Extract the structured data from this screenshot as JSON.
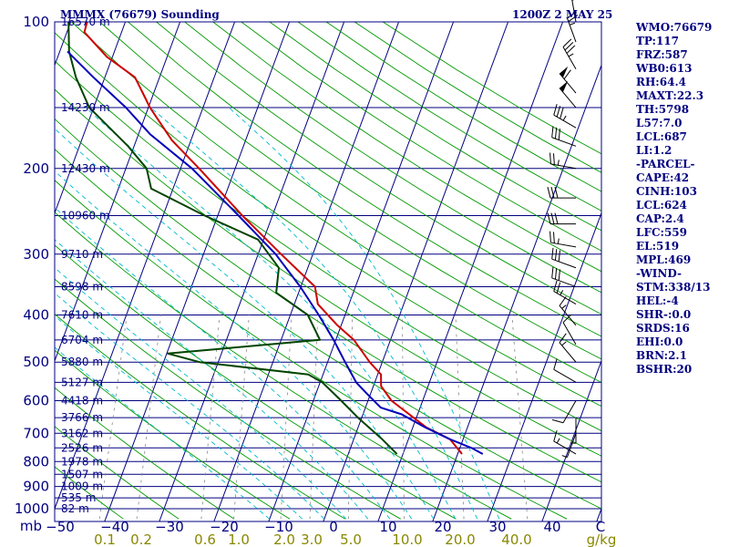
{
  "header": {
    "station_title": "MMMX (76679) Sounding",
    "time_label": "1200Z  2 MAY 25"
  },
  "indices": [
    "WMO:76679",
    "TP:117",
    "FRZ:587",
    "WB0:613",
    "RH:64.4",
    "MAXT:22.3",
    "TH:5798",
    "L57:7.0",
    "LCL:687",
    "LI:1.2",
    "-PARCEL-",
    "CAPE:42",
    "CINH:103",
    "LCL:624",
    "CAP:2.4",
    "LFC:559",
    "EL:519",
    "MPL:469",
    "-WIND-",
    "STM:338/13",
    "HEL:-4",
    "SHR-:0.0",
    "SRDS:16",
    "EHI:0.0",
    "BRN:2.1",
    "BSHR:20"
  ],
  "colors": {
    "frame": "#000080",
    "isobar": "#000080",
    "isotherm": "#000080",
    "dry_adiabat": "#009900",
    "moist_adiabat": "#00bbcc",
    "mixing_ratio": "#888888",
    "temperature": "#cc0000",
    "dewpoint": "#004400",
    "parcel": "#0000bb",
    "pressure_label": "#000080",
    "height_label": "#000080",
    "temp_label": "#000080",
    "mixing_label": "#888800",
    "barb": "#000000"
  },
  "chart_data": {
    "type": "skew-t log-p",
    "pressure_axis": {
      "range_hPa": [
        1000,
        100
      ],
      "scale": "log"
    },
    "temperature_axis": {
      "range_C": [
        -50,
        50
      ],
      "skewed": true
    },
    "pressure_labels": [
      "100",
      "200",
      "300",
      "400",
      "500",
      "600",
      "700",
      "800",
      "900",
      "1000",
      "mb"
    ],
    "temperature_ticks": [
      "−50",
      "−40",
      "−30",
      "−20",
      "−10",
      "0",
      "10",
      "20",
      "30",
      "40",
      "C"
    ],
    "mixing_ratio_labels": [
      "0.1",
      "0.2",
      "0.6",
      "1.0",
      "2.0",
      "3.0",
      "5.0",
      "10.0",
      "20.0",
      "40.0",
      "g/kg"
    ],
    "height_levels": [
      {
        "p": 100,
        "label": "16570 m"
      },
      {
        "p": 150,
        "label": "14230 m"
      },
      {
        "p": 200,
        "label": "12430 m"
      },
      {
        "p": 250,
        "label": "10960 m"
      },
      {
        "p": 300,
        "label": "9710 m"
      },
      {
        "p": 350,
        "label": "8598 m"
      },
      {
        "p": 400,
        "label": "7610 m"
      },
      {
        "p": 450,
        "label": "6704 m"
      },
      {
        "p": 500,
        "label": "5880 m"
      },
      {
        "p": 550,
        "label": "5127 m"
      },
      {
        "p": 600,
        "label": "4418 m"
      },
      {
        "p": 650,
        "label": "3766 m"
      },
      {
        "p": 700,
        "label": "3162 m"
      },
      {
        "p": 750,
        "label": "2526 m"
      },
      {
        "p": 800,
        "label": "1978 m"
      },
      {
        "p": 850,
        "label": "1507 m"
      },
      {
        "p": 900,
        "label": "1009 m"
      },
      {
        "p": 950,
        "label": "535 m"
      },
      {
        "p": 1000,
        "label": "82 m"
      }
    ],
    "series": [
      {
        "name": "temperature",
        "points": [
          {
            "p": 772,
            "t": 20.8
          },
          {
            "p": 720,
            "t": 17.6
          },
          {
            "p": 680,
            "t": 12.4
          },
          {
            "p": 600,
            "t": 4.3
          },
          {
            "p": 560,
            "t": 1.4
          },
          {
            "p": 530,
            "t": 0.6
          },
          {
            "p": 500,
            "t": -2.3
          },
          {
            "p": 450,
            "t": -6.7
          },
          {
            "p": 420,
            "t": -10.7
          },
          {
            "p": 380,
            "t": -15.7
          },
          {
            "p": 350,
            "t": -17.4
          },
          {
            "p": 300,
            "t": -25.8
          },
          {
            "p": 250,
            "t": -35.5
          },
          {
            "p": 200,
            "t": -46.6
          },
          {
            "p": 175,
            "t": -53.5
          },
          {
            "p": 150,
            "t": -59.7
          },
          {
            "p": 140,
            "t": -62.0
          },
          {
            "p": 130,
            "t": -64.5
          },
          {
            "p": 118,
            "t": -71.0
          },
          {
            "p": 105,
            "t": -76.8
          },
          {
            "p": 100,
            "t": -77.0
          }
        ]
      },
      {
        "name": "dewpoint",
        "points": [
          {
            "p": 772,
            "t": 8.9
          },
          {
            "p": 720,
            "t": 5.2
          },
          {
            "p": 650,
            "t": -0.7
          },
          {
            "p": 600,
            "t": -4.9
          },
          {
            "p": 550,
            "t": -9.6
          },
          {
            "p": 530,
            "t": -12.7
          },
          {
            "p": 500,
            "t": -33.4
          },
          {
            "p": 480,
            "t": -39.8
          },
          {
            "p": 450,
            "t": -12.9
          },
          {
            "p": 400,
            "t": -16.8
          },
          {
            "p": 360,
            "t": -24.1
          },
          {
            "p": 320,
            "t": -25.3
          },
          {
            "p": 280,
            "t": -31.0
          },
          {
            "p": 250,
            "t": -42.4
          },
          {
            "p": 220,
            "t": -54.0
          },
          {
            "p": 200,
            "t": -56.2
          },
          {
            "p": 180,
            "t": -61.1
          },
          {
            "p": 150,
            "t": -70.8
          },
          {
            "p": 130,
            "t": -75.3
          },
          {
            "p": 115,
            "t": -78.3
          },
          {
            "p": 100,
            "t": -80.4
          }
        ]
      },
      {
        "name": "parcel",
        "points": [
          {
            "p": 772,
            "t": 24.6
          },
          {
            "p": 750,
            "t": 22.1
          },
          {
            "p": 720,
            "t": 17.6
          },
          {
            "p": 680,
            "t": 12.2
          },
          {
            "p": 640,
            "t": 7.1
          },
          {
            "p": 620,
            "t": 2.8
          },
          {
            "p": 580,
            "t": -0.7
          },
          {
            "p": 550,
            "t": -3.4
          },
          {
            "p": 500,
            "t": -6.8
          },
          {
            "p": 450,
            "t": -10.4
          },
          {
            "p": 400,
            "t": -14.8
          },
          {
            "p": 350,
            "t": -20.1
          },
          {
            "p": 300,
            "t": -26.8
          },
          {
            "p": 250,
            "t": -36.2
          },
          {
            "p": 200,
            "t": -47.9
          },
          {
            "p": 170,
            "t": -57.9
          },
          {
            "p": 150,
            "t": -64.1
          },
          {
            "p": 130,
            "t": -72.1
          },
          {
            "p": 115,
            "t": -78.6
          }
        ]
      }
    ],
    "wind_barbs": [
      {
        "p": 100,
        "dir": 350,
        "spd": 20
      },
      {
        "p": 110,
        "dir": 340,
        "spd": 25
      },
      {
        "p": 125,
        "dir": 330,
        "spd": 35
      },
      {
        "p": 140,
        "dir": 320,
        "spd": 60
      },
      {
        "p": 150,
        "dir": 320,
        "spd": 50
      },
      {
        "p": 165,
        "dir": 300,
        "spd": 35
      },
      {
        "p": 180,
        "dir": 290,
        "spd": 30
      },
      {
        "p": 200,
        "dir": 280,
        "spd": 25
      },
      {
        "p": 230,
        "dir": 270,
        "spd": 30
      },
      {
        "p": 260,
        "dir": 270,
        "spd": 30
      },
      {
        "p": 290,
        "dir": 280,
        "spd": 25
      },
      {
        "p": 320,
        "dir": 290,
        "spd": 30
      },
      {
        "p": 350,
        "dir": 290,
        "spd": 30
      },
      {
        "p": 380,
        "dir": 300,
        "spd": 25
      },
      {
        "p": 420,
        "dir": 320,
        "spd": 15
      },
      {
        "p": 460,
        "dir": 330,
        "spd": 10
      },
      {
        "p": 500,
        "dir": 320,
        "spd": 15
      },
      {
        "p": 550,
        "dir": 300,
        "spd": 10
      },
      {
        "p": 600,
        "dir": 210,
        "spd": 10
      },
      {
        "p": 650,
        "dir": 180,
        "spd": 5
      },
      {
        "p": 700,
        "dir": 200,
        "spd": 5
      },
      {
        "p": 772,
        "dir": 300,
        "spd": 15
      }
    ]
  }
}
